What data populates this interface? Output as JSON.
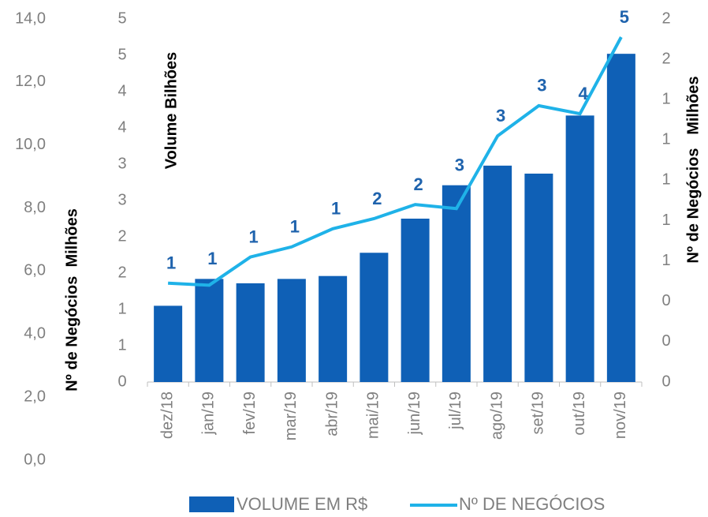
{
  "chart_data": {
    "type": "bar_line",
    "categories": [
      "dez/18",
      "jan/19",
      "fev/19",
      "mar/19",
      "abr/19",
      "mai/19",
      "jun/19",
      "jul/19",
      "ago/19",
      "set/19",
      "out/19",
      "nov/19"
    ],
    "series": [
      {
        "name": "VOLUME EM R$",
        "type": "bar",
        "color": "#0f60b6",
        "axis": "y",
        "values": [
          1.05,
          1.42,
          1.36,
          1.42,
          1.46,
          1.78,
          2.25,
          2.71,
          2.98,
          2.87,
          3.67,
          4.52
        ],
        "value_labels": [
          "1",
          "1",
          "1",
          "1",
          "1",
          "2",
          "2",
          "3",
          "3",
          "3",
          "4",
          "5"
        ]
      },
      {
        "name": "Nº DE NEGÓCIOS",
        "type": "line",
        "color": "#1fb2e8",
        "axis": "y2",
        "values": [
          0.49,
          0.48,
          0.62,
          0.67,
          0.76,
          0.81,
          0.88,
          0.86,
          1.22,
          1.37,
          1.33,
          1.71
        ]
      }
    ],
    "ylabel": "Volume Bilhões",
    "ylim": [
      0,
      5
    ],
    "yticks": [
      0,
      {
        "value": 0.5,
        "label": "1"
      },
      1,
      {
        "value": 1.5,
        "label": "2"
      },
      2,
      {
        "value": 2.5,
        "label": "3"
      },
      3,
      {
        "value": 3.5,
        "label": "4"
      },
      4,
      {
        "value": 4.5,
        "label": "5"
      },
      5
    ],
    "y2label": "Nº de Negócios   Milhões",
    "y2lim": [
      0,
      1.8
    ],
    "y2ticks": [
      0,
      {
        "value": 0.2,
        "label": "0"
      },
      {
        "value": 0.4,
        "label": "0"
      },
      {
        "value": 0.6,
        "label": "1"
      },
      {
        "value": 0.8,
        "label": "1"
      },
      1,
      {
        "value": 1.2,
        "label": "1"
      },
      {
        "value": 1.4,
        "label": "1"
      },
      {
        "value": 1.6,
        "label": "2"
      },
      {
        "value": 1.8,
        "label": "2"
      }
    ],
    "y3label": "Nº de Negócios  Milhões",
    "y3lim": [
      0,
      14
    ],
    "y3ticks": [
      {
        "value": 0,
        "label": "0,0"
      },
      {
        "value": 2,
        "label": "2,0"
      },
      {
        "value": 4,
        "label": "4,0"
      },
      {
        "value": 6,
        "label": "6,0"
      },
      {
        "value": 8,
        "label": "8,0"
      },
      {
        "value": 10,
        "label": "10,0"
      },
      {
        "value": 12,
        "label": "12,0"
      },
      {
        "value": 14,
        "label": "14,0"
      }
    ]
  }
}
